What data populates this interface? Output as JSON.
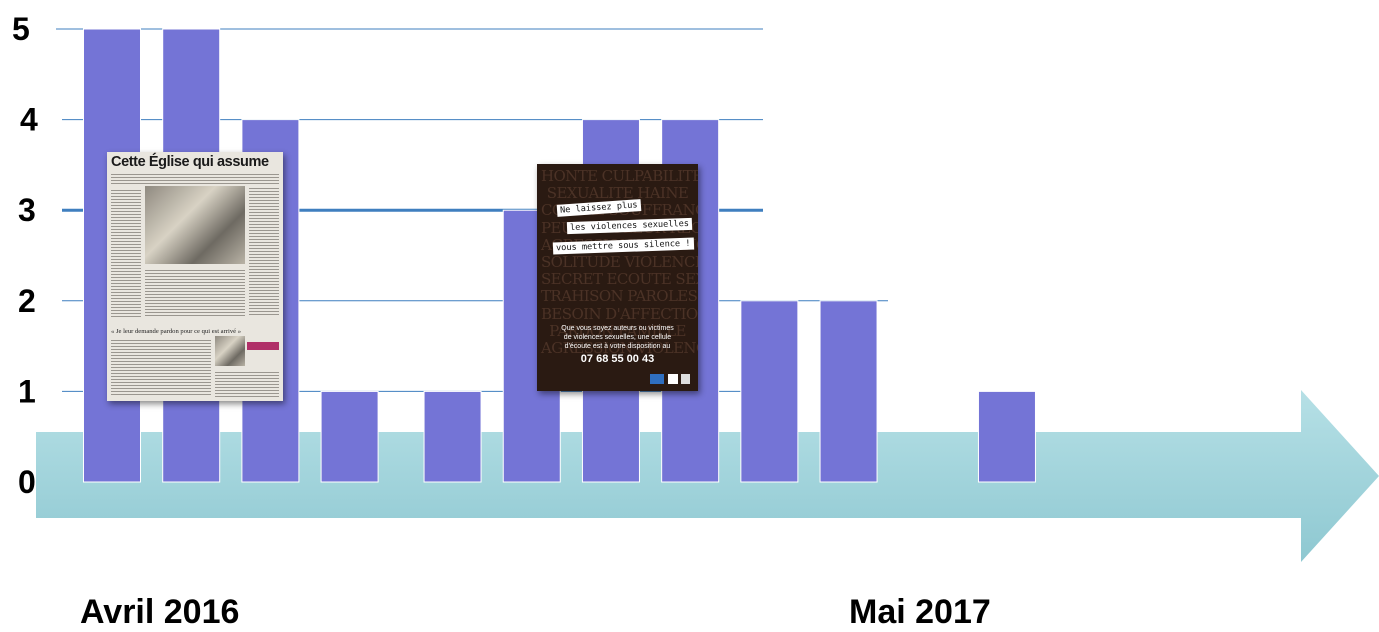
{
  "chart_data": {
    "type": "bar",
    "ylim": [
      0,
      5
    ],
    "yticks": [
      0,
      1,
      2,
      3,
      4,
      5
    ],
    "gridlines": [
      1,
      2,
      3,
      4,
      5
    ],
    "highlighted_gridline": 3,
    "bar_slots": [
      0,
      1,
      2,
      3,
      4.3,
      5.3,
      6.3,
      7.3,
      8.3,
      9.3,
      11.3
    ],
    "values": [
      5,
      5,
      4,
      1,
      1,
      3,
      4,
      4,
      2,
      2,
      1
    ],
    "x_start_label": "Avril 2016",
    "x_end_label": "Mai 2017",
    "bar_color": "#7474d6",
    "arrow_color": "#a9d8df",
    "grid_color": "#3f7fbf"
  },
  "clipping": {
    "headline": "Cette Église qui assume",
    "quote": "« Je leur demande pardon pour ce qui est arrivé »"
  },
  "poster": {
    "background_words": [
      "HONTE CULPABILITE",
      "SEXUALITE HAINE",
      "COLERE SOUFFRANCE",
      "PEUR DOULEUR REGRET",
      "AGRESSION VIOLENCE",
      "SOLITUDE VIOLENCE",
      "SECRET ECOUTE SEXE",
      "TRAHISON PAROLES",
      "BESOIN D'AFFECTION",
      "PARDON FAMILLE",
      "AGRESSION VIOLENCE"
    ],
    "tape_lines": [
      "Ne laissez plus",
      "les violences sexuelles",
      "vous mettre sous silence !"
    ],
    "body_lines": [
      "Que vous soyez auteurs ou victimes",
      "de violences sexuelles, une cellule",
      "d'écoute est à votre disposition au"
    ],
    "phone": "07 68 55 00 43"
  }
}
